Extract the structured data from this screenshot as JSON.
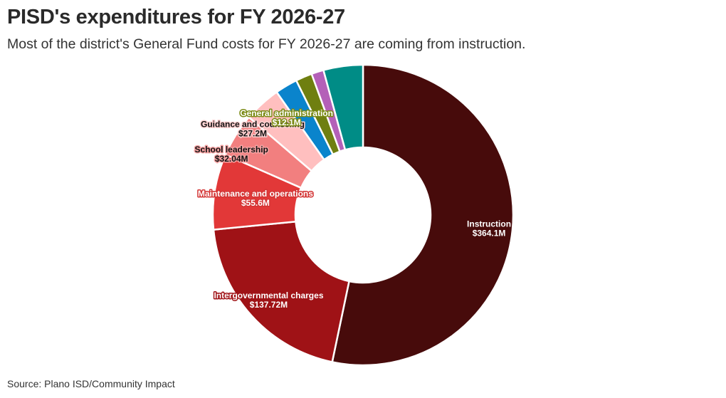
{
  "header": {
    "title": "PISD's expenditures for FY 2026-27",
    "subtitle": "Most of the district's General Fund costs for FY 2026-27 are coming from instruction."
  },
  "footer": {
    "source": "Source: Plano ISD/Community Impact"
  },
  "chart_data": {
    "type": "pie",
    "donut": true,
    "title": "PISD's expenditures for FY 2026-27",
    "subtitle": "Most of the district's General Fund costs for FY 2026-27 are coming from instruction.",
    "slices": [
      {
        "label": "Instruction",
        "value": 364.1,
        "value_label": "$364.1M",
        "color": "#470b0b",
        "label_fill": "#ffffff",
        "label_halo": "#470b0b"
      },
      {
        "label": "Intergovernmental charges",
        "value": 137.72,
        "value_label": "$137.72M",
        "color": "#9f1216",
        "label_fill": "#ffffff",
        "label_halo": "#9f1216"
      },
      {
        "label": "Maintenance and operations",
        "value": 55.6,
        "value_label": "$55.6M",
        "color": "#e23838",
        "label_fill": "#ffffff",
        "label_halo": "#d33434"
      },
      {
        "label": "School leadership",
        "value": 32.04,
        "value_label": "$32.04M",
        "color": "#f27f7f",
        "label_fill": "#111111",
        "label_halo": "#f4a2a2"
      },
      {
        "label": "Guidance and counseling",
        "value": 27.2,
        "value_label": "$27.2M",
        "color": "#ffbfbf",
        "label_fill": "#111111",
        "label_halo": "#ffd2d2"
      },
      {
        "label": "",
        "value": 16.5,
        "value_label": "",
        "color": "#0a84cc"
      },
      {
        "label": "General administration",
        "value": 12.1,
        "value_label": "$12.1M",
        "color": "#6f7f10",
        "label_fill": "#ffffff",
        "label_halo": "#7a8a14"
      },
      {
        "label": "",
        "value": 9.0,
        "value_label": "",
        "color": "#b460b8"
      },
      {
        "label": "",
        "value": 29.0,
        "value_label": "",
        "color": "#008c86"
      }
    ]
  }
}
